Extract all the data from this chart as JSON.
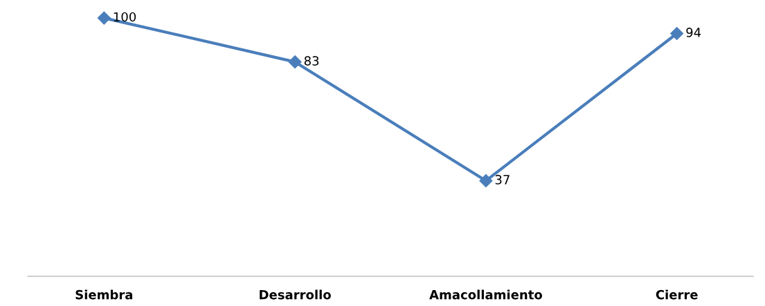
{
  "chart_data": {
    "type": "line",
    "categories": [
      "Siembra",
      "Desarrollo",
      "Amacollamiento",
      "Cierre"
    ],
    "series": [
      {
        "color": "#4a7ebb",
        "values": [
          100,
          83,
          37,
          94
        ]
      }
    ],
    "data_labels": true,
    "marker": "diamond",
    "line_style": "solid",
    "grid": false,
    "legend": false
  }
}
